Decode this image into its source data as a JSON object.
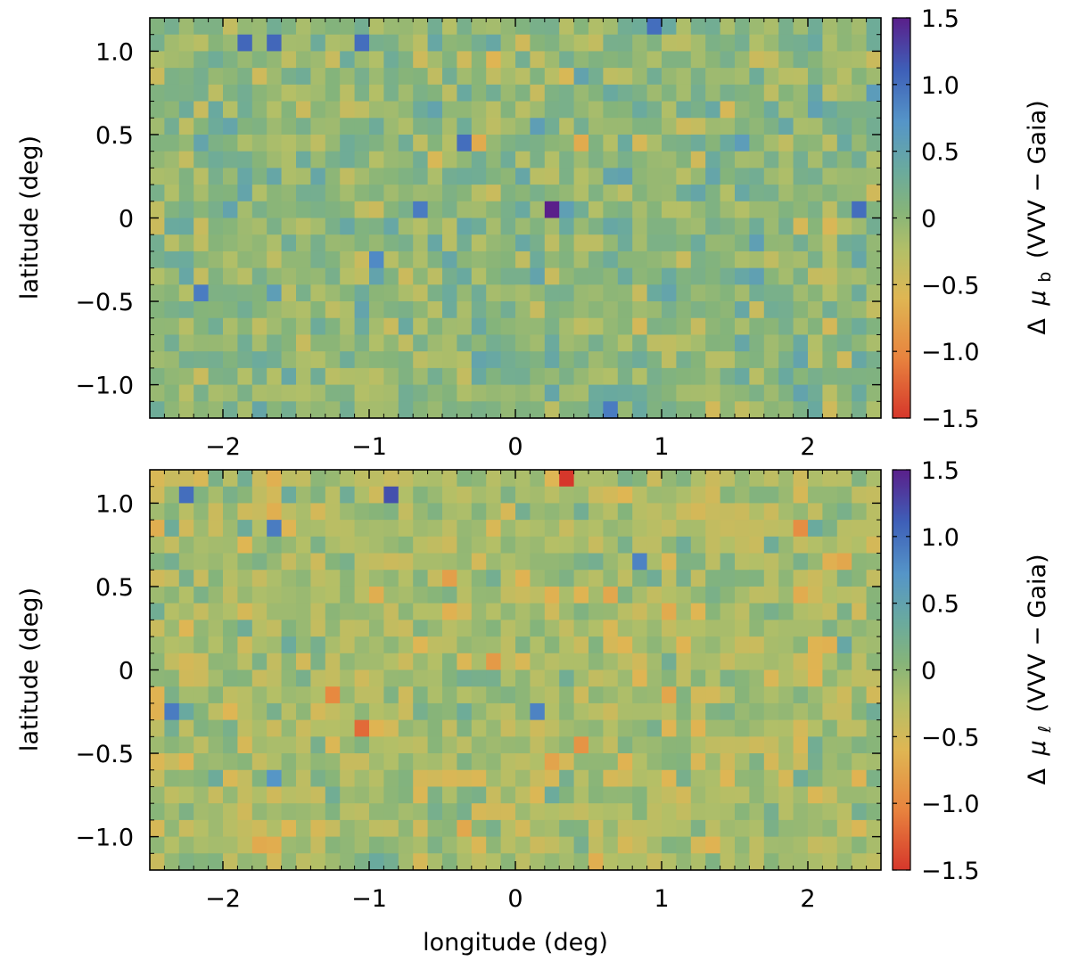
{
  "chart_data": [
    {
      "type": "heatmap",
      "title": "",
      "xlabel": "",
      "ylabel": "latitude (deg)",
      "colorbar_label": "Δ μ_b (VVV − Gaia)",
      "colorbar_label_parts": {
        "prefix": "Δ",
        "mu": "μ",
        "subscript": "b",
        "suffix": "(VVV − Gaia)"
      },
      "xlim": [
        -2.5,
        2.5
      ],
      "ylim": [
        -1.2,
        1.2
      ],
      "clim": [
        -1.5,
        1.5
      ],
      "nx": 50,
      "ny": 24,
      "xticks": [
        -2,
        -1,
        0,
        1,
        2
      ],
      "xtick_labels": [
        "−2",
        "−1",
        "0",
        "1",
        "2"
      ],
      "yticks": [
        1.0,
        0.5,
        0,
        -0.5,
        -1.0
      ],
      "ytick_labels": [
        "1.0",
        "0.5",
        "0",
        "−0.5",
        "−1.0"
      ],
      "cticks": [
        1.5,
        1.0,
        0.5,
        0,
        -0.5,
        -1.0,
        -1.5
      ],
      "ctick_labels": [
        "1.5",
        "1.0",
        "0.5",
        "0",
        "−0.5",
        "−1.0",
        "−1.5"
      ],
      "base_value": 0.02,
      "spread": 0.22,
      "seed": 11,
      "highlights": [
        {
          "l": 0.3,
          "b": 0.1,
          "v": 1.5
        },
        {
          "l": -1.8,
          "b": 1.05,
          "v": 1.05
        },
        {
          "l": -1.65,
          "b": 1.05,
          "v": 1.05
        },
        {
          "l": -1.05,
          "b": 1.05,
          "v": 1.0
        },
        {
          "l": 0.95,
          "b": 1.15,
          "v": 1.0
        },
        {
          "l": -0.4,
          "b": 0.5,
          "v": 1.0
        },
        {
          "l": 2.35,
          "b": 0.1,
          "v": 1.0
        },
        {
          "l": -0.7,
          "b": 0.1,
          "v": 0.9
        },
        {
          "l": -2.1,
          "b": -0.45,
          "v": 0.9
        },
        {
          "l": 0.6,
          "b": -1.1,
          "v": 0.9
        },
        {
          "l": -0.2,
          "b": 0.5,
          "v": -0.7
        },
        {
          "l": 0.45,
          "b": 0.5,
          "v": -0.7
        },
        {
          "l": -0.95,
          "b": -0.25,
          "v": 0.8
        }
      ],
      "cells": []
    },
    {
      "type": "heatmap",
      "title": "",
      "xlabel": "longitude (deg)",
      "ylabel": "latitude (deg)",
      "colorbar_label": "Δ μ_ℓ (VVV − Gaia)",
      "colorbar_label_parts": {
        "prefix": "Δ",
        "mu": "μ",
        "subscript": "ℓ",
        "suffix": "(VVV − Gaia)"
      },
      "xlim": [
        -2.5,
        2.5
      ],
      "ylim": [
        -1.2,
        1.2
      ],
      "clim": [
        -1.5,
        1.5
      ],
      "nx": 50,
      "ny": 24,
      "xticks": [
        -2,
        -1,
        0,
        1,
        2
      ],
      "xtick_labels": [
        "−2",
        "−1",
        "0",
        "1",
        "2"
      ],
      "yticks": [
        1.0,
        0.5,
        0,
        -0.5,
        -1.0
      ],
      "ytick_labels": [
        "1.0",
        "0.5",
        "0",
        "−0.5",
        "−1.0"
      ],
      "cticks": [
        1.5,
        1.0,
        0.5,
        0,
        -0.5,
        -1.0,
        -1.5
      ],
      "ctick_labels": [
        "1.5",
        "1.0",
        "0.5",
        "0",
        "−0.5",
        "−1.0",
        "−1.5"
      ],
      "base_value": -0.18,
      "spread": 0.22,
      "seed": 29,
      "highlights": [
        {
          "l": 0.35,
          "b": 1.15,
          "v": -1.5
        },
        {
          "l": -0.9,
          "b": 1.0,
          "v": 1.2
        },
        {
          "l": -2.3,
          "b": 1.05,
          "v": 1.0
        },
        {
          "l": -2.4,
          "b": -0.25,
          "v": 0.9
        },
        {
          "l": -1.6,
          "b": 0.85,
          "v": 0.9
        },
        {
          "l": 0.85,
          "b": 0.65,
          "v": 0.85
        },
        {
          "l": -1.05,
          "b": -0.35,
          "v": -1.2
        },
        {
          "l": -1.25,
          "b": -0.1,
          "v": -1.0
        },
        {
          "l": 1.9,
          "b": 0.85,
          "v": -0.95
        },
        {
          "l": 0.45,
          "b": -0.45,
          "v": -0.9
        },
        {
          "l": -0.15,
          "b": 0.05,
          "v": -0.85
        },
        {
          "l": -0.5,
          "b": 0.55,
          "v": -0.8
        },
        {
          "l": 0.15,
          "b": -0.2,
          "v": 0.85
        },
        {
          "l": -1.7,
          "b": -0.6,
          "v": 0.7
        }
      ],
      "cells": []
    }
  ]
}
